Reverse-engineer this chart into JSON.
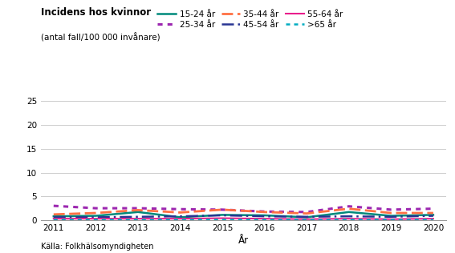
{
  "title_line1": "Incidens hos kvinnor",
  "title_line2": "(antal fall/100 000 invånare)",
  "xlabel": "År",
  "source": "Källa: Folkhälsomyndigheten",
  "years": [
    2011,
    2012,
    2013,
    2014,
    2015,
    2016,
    2017,
    2018,
    2019,
    2020
  ],
  "series": {
    "15-24 år": {
      "values": [
        0.8,
        0.9,
        1.7,
        0.6,
        1.1,
        1.0,
        0.6,
        1.7,
        0.9,
        1.1
      ],
      "color": "#00897B",
      "linestyle": "solid",
      "linewidth": 1.8
    },
    "25-34 år": {
      "values": [
        3.0,
        2.5,
        2.5,
        2.3,
        2.2,
        1.8,
        1.7,
        2.9,
        2.2,
        2.4
      ],
      "color": "#9C27B0",
      "linestyle": "dotted",
      "linewidth": 2.2
    },
    "35-44 år": {
      "values": [
        1.2,
        1.5,
        2.1,
        1.6,
        2.2,
        1.7,
        1.4,
        2.4,
        1.5,
        1.5
      ],
      "color": "#FF7043",
      "linestyle": "dashed",
      "linewidth": 2.0
    },
    "45-54 år": {
      "values": [
        0.6,
        0.6,
        0.7,
        0.8,
        1.0,
        0.8,
        0.7,
        0.8,
        0.7,
        0.9
      ],
      "color": "#283593",
      "linestyle": "dashed",
      "linewidth": 1.8
    },
    "55-64 år": {
      "values": [
        0.3,
        0.3,
        0.3,
        0.3,
        0.4,
        0.3,
        0.2,
        0.3,
        0.2,
        0.3
      ],
      "color": "#E91E8C",
      "linestyle": "solid",
      "linewidth": 1.5
    },
    ">65 år": {
      "values": [
        0.05,
        0.05,
        0.05,
        0.05,
        0.08,
        0.05,
        0.05,
        0.05,
        0.05,
        0.05
      ],
      "color": "#00ACC1",
      "linestyle": "dotted",
      "linewidth": 1.8
    }
  },
  "ylim": [
    0,
    25
  ],
  "yticks": [
    0,
    5,
    10,
    15,
    20,
    25
  ],
  "xlim": [
    2011,
    2020
  ],
  "background_color": "#ffffff",
  "grid_color": "#cccccc"
}
